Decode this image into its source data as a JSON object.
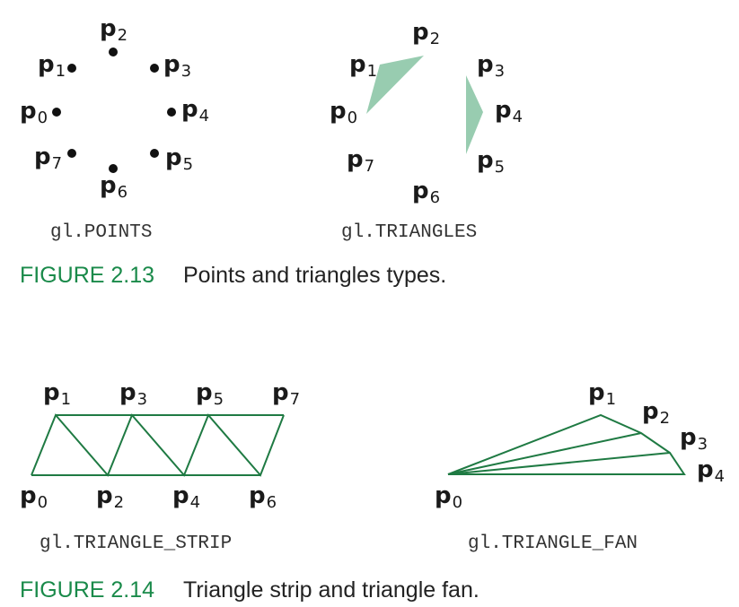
{
  "colors": {
    "accent": "#1a8a4a",
    "triangle_fill": "#98ccb0",
    "edge": "#1f7a43"
  },
  "vertex_symbol": "p",
  "panels": {
    "points": {
      "vertices": [
        {
          "sub": "0"
        },
        {
          "sub": "1"
        },
        {
          "sub": "2"
        },
        {
          "sub": "3"
        },
        {
          "sub": "4"
        },
        {
          "sub": "5"
        },
        {
          "sub": "6"
        },
        {
          "sub": "7"
        }
      ],
      "label": "gl.POINTS"
    },
    "triangles": {
      "vertices": [
        {
          "sub": "0"
        },
        {
          "sub": "1"
        },
        {
          "sub": "2"
        },
        {
          "sub": "3"
        },
        {
          "sub": "4"
        },
        {
          "sub": "5"
        },
        {
          "sub": "6"
        },
        {
          "sub": "7"
        }
      ],
      "label": "gl.TRIANGLES"
    },
    "strip": {
      "vertices": [
        {
          "sub": "0"
        },
        {
          "sub": "1"
        },
        {
          "sub": "2"
        },
        {
          "sub": "3"
        },
        {
          "sub": "4"
        },
        {
          "sub": "5"
        },
        {
          "sub": "6"
        },
        {
          "sub": "7"
        }
      ],
      "label": "gl.TRIANGLE_STRIP"
    },
    "fan": {
      "vertices": [
        {
          "sub": "0"
        },
        {
          "sub": "1"
        },
        {
          "sub": "2"
        },
        {
          "sub": "3"
        },
        {
          "sub": "4"
        }
      ],
      "label": "gl.TRIANGLE_FAN"
    }
  },
  "captions": [
    {
      "number": "FIGURE 2.13",
      "text": "Points and triangles types."
    },
    {
      "number": "FIGURE 2.14",
      "text": "Triangle strip and triangle fan."
    }
  ]
}
